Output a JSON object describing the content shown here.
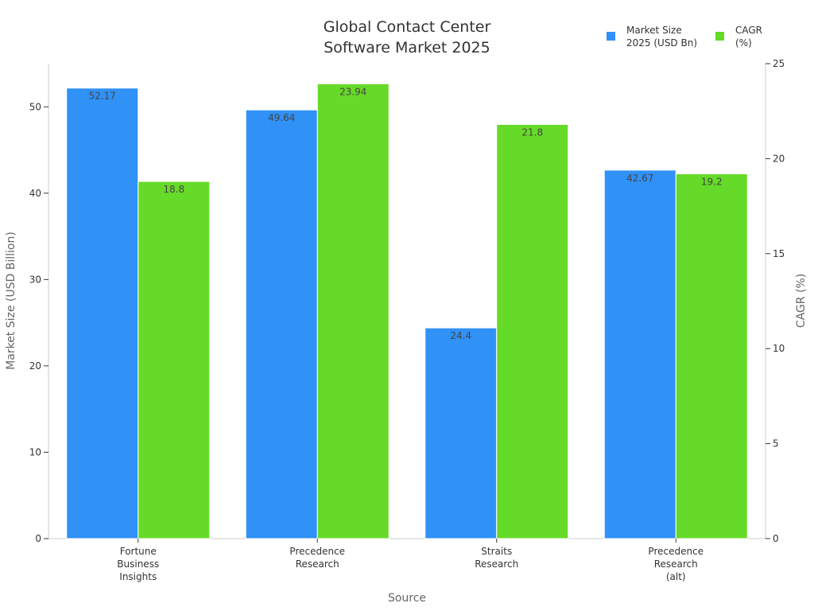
{
  "chart_data": {
    "type": "bar",
    "title_lines": [
      "Global Contact Center",
      "Software Market 2025"
    ],
    "xlabel": "Source",
    "ylabel": "Market Size (USD Billion)",
    "y2label": "CAGR (%)",
    "categories": [
      [
        "Fortune",
        "Business",
        "Insights"
      ],
      [
        "Precedence",
        "Research"
      ],
      [
        "Straits",
        "Research"
      ],
      [
        "Precedence",
        "Research",
        "(alt)"
      ]
    ],
    "ylim": [
      0,
      55
    ],
    "y_ticks": [
      0,
      10,
      20,
      30,
      40,
      50
    ],
    "y2lim": [
      0,
      25
    ],
    "y2_ticks": [
      0,
      5,
      10,
      15,
      20,
      25
    ],
    "grid": false,
    "legend_position": "top-right",
    "series": [
      {
        "name_lines": [
          "Market Size",
          "2025 (USD Bn)"
        ],
        "axis": "left",
        "color": "#3091f7",
        "values": [
          52.17,
          49.64,
          24.4,
          42.67
        ],
        "labels": [
          "52.17",
          "49.64",
          "24.4",
          "42.67"
        ]
      },
      {
        "name_lines": [
          "CAGR",
          "(%)"
        ],
        "axis": "right",
        "color": "#66da28",
        "values": [
          18.8,
          23.94,
          21.8,
          19.2
        ],
        "labels": [
          "18.8",
          "23.94",
          "21.8",
          "19.2"
        ]
      }
    ]
  }
}
